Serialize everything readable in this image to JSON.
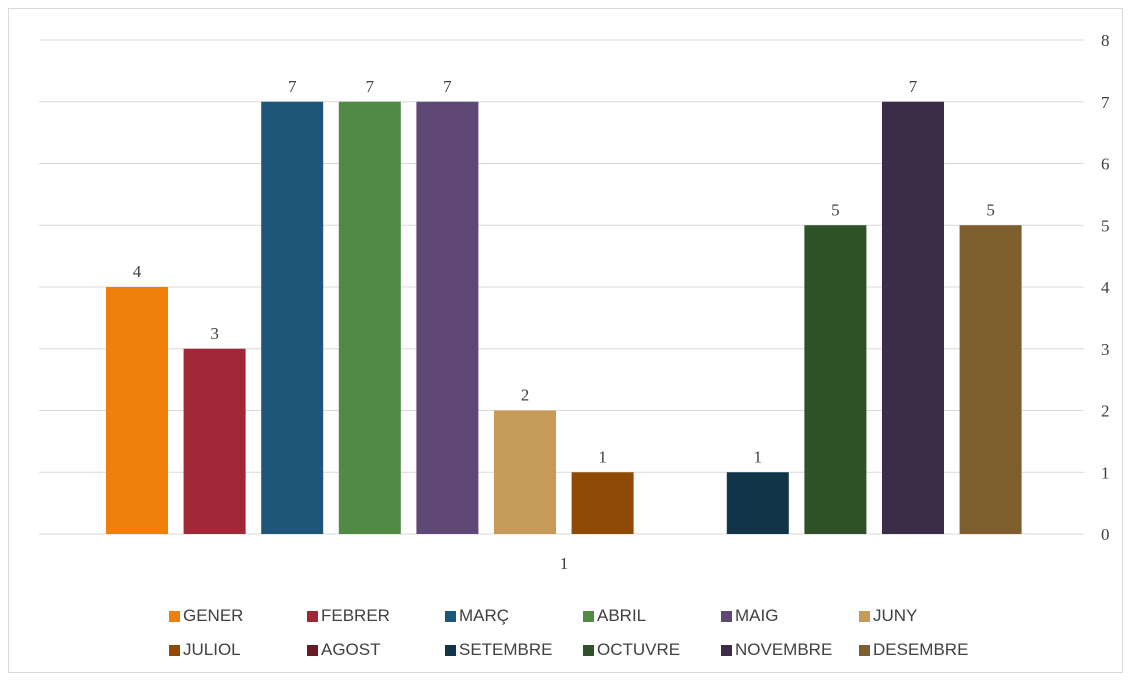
{
  "chart_data": {
    "type": "bar",
    "categories": [
      "1"
    ],
    "series": [
      {
        "name": "GENER",
        "values": [
          4
        ],
        "color": "#ee7f0a"
      },
      {
        "name": "FEBRER",
        "values": [
          3
        ],
        "color": "#a02735"
      },
      {
        "name": "MARÇ",
        "values": [
          7
        ],
        "color": "#1d5679"
      },
      {
        "name": "ABRIL",
        "values": [
          7
        ],
        "color": "#518a44"
      },
      {
        "name": "MAIG",
        "values": [
          7
        ],
        "color": "#5f4876"
      },
      {
        "name": "JUNY",
        "values": [
          2
        ],
        "color": "#c69b5a"
      },
      {
        "name": "JULIOL",
        "values": [
          1
        ],
        "color": "#8f4a05"
      },
      {
        "name": "AGOST",
        "values": [
          0
        ],
        "color": "#6b1a25"
      },
      {
        "name": "SETEMBRE",
        "values": [
          1
        ],
        "color": "#123449"
      },
      {
        "name": "OCTUVRE",
        "values": [
          5
        ],
        "color": "#2f5128"
      },
      {
        "name": "NOVEMBRE",
        "values": [
          7
        ],
        "color": "#3b2c48"
      },
      {
        "name": "DESEMBRE",
        "values": [
          5
        ],
        "color": "#7e5d2e"
      }
    ],
    "y_axis": {
      "position": "right",
      "ticks": [
        0,
        1,
        2,
        3,
        4,
        5,
        6,
        7,
        8
      ],
      "ylim": [
        0,
        8
      ]
    },
    "grid": true,
    "legend_position": "bottom"
  }
}
